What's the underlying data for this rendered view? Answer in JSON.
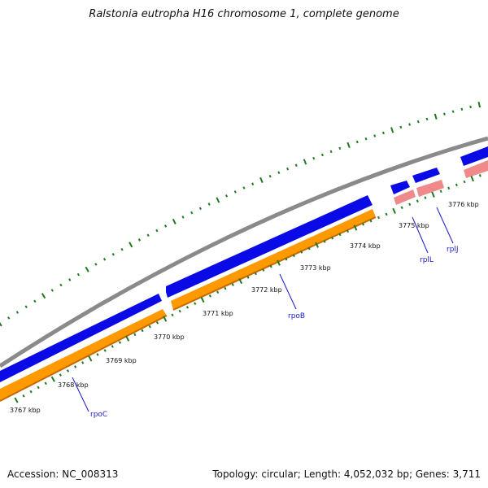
{
  "title": "Ralstonia eutropha H16 chromosome 1, complete genome",
  "footer": {
    "accession": "Accession: NC_008313",
    "summary": "Topology: circular; Length: 4,052,032 bp; Genes: 3,711"
  },
  "colors": {
    "backbone": "#8f8f8f",
    "cds_forward": "#0a0ae6",
    "gene_band": "#ff9900",
    "rna_band": "#f08a8a",
    "ticks": "#1f7a1f",
    "label_line": "#1a1acc"
  },
  "kbp_labels": [
    "3767 kbp",
    "3768 kbp",
    "3769 kbp",
    "3770 kbp",
    "3771 kbp",
    "3772 kbp",
    "3773 kbp",
    "3774 kbp",
    "3775 kbp",
    "3776 kbp"
  ],
  "gene_labels": [
    "rpoC",
    "rpoB",
    "rplL",
    "rplJ"
  ]
}
